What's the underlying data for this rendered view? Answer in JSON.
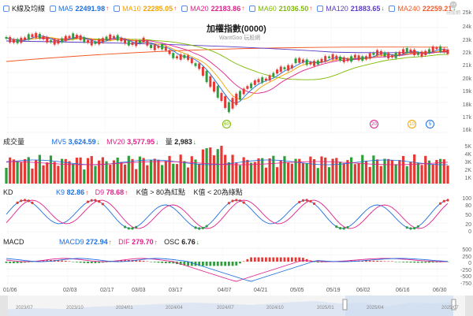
{
  "ma_legend": {
    "k_label": "K線及均線",
    "items": [
      {
        "name": "MA5",
        "value": "22491.98",
        "dir": "↑",
        "color": "#1e6fe0"
      },
      {
        "name": "MA10",
        "value": "22285.05",
        "dir": "↑",
        "color": "#f4a300"
      },
      {
        "name": "MA20",
        "value": "22183.86",
        "dir": "↑",
        "color": "#e0218a"
      },
      {
        "name": "MA60",
        "value": "21036.50",
        "dir": "↑",
        "color": "#7fba00"
      },
      {
        "name": "MA120",
        "value": "21883.65",
        "dir": "↓",
        "color": "#5b3cc4"
      },
      {
        "name": "MA240",
        "value": "22259.21",
        "dir": "↓",
        "color": "#f05a28"
      }
    ]
  },
  "logo": {
    "text": "玩股網"
  },
  "main": {
    "title": "加權指數(0000)",
    "subtitle": "WantGoo 玩股網",
    "y_ticks": [
      "23k",
      "22k",
      "21k",
      "20k",
      "19k",
      "18k",
      "17k",
      "16k",
      "25k",
      "24k"
    ],
    "badges": [
      {
        "text": "60",
        "color": "#7fba00"
      },
      {
        "text": "20",
        "color": "#e0218a"
      },
      {
        "text": "10",
        "color": "#f4a300"
      },
      {
        "text": "5",
        "color": "#1e6fe0"
      }
    ]
  },
  "volume": {
    "label": "成交量",
    "mv5": {
      "name": "MV5",
      "value": "3,624.59",
      "dir": "↓",
      "color": "#1e6fe0"
    },
    "mv20": {
      "name": "MV20",
      "value": "3,577.95",
      "dir": "↓",
      "color": "#e0218a"
    },
    "qty": {
      "name": "量",
      "value": "2,983",
      "dir": "↓"
    },
    "y_ticks": [
      "5K",
      "4K",
      "3K",
      "2K",
      "1K"
    ]
  },
  "kd": {
    "label": "KD",
    "k9": {
      "name": "K9",
      "value": "82.86",
      "dir": "↑",
      "color": "#1e6fe0"
    },
    "d9": {
      "name": "D9",
      "value": "78.68",
      "dir": "↑",
      "color": "#e0218a"
    },
    "note1": "K值 > 80為紅點",
    "note2": "K值 < 20為綠點",
    "y_ticks": [
      "100",
      "80",
      "50",
      "20",
      "0"
    ]
  },
  "macd": {
    "label": "MACD",
    "macd9": {
      "name": "MACD9",
      "value": "272.94",
      "dir": "↑",
      "color": "#1e6fe0"
    },
    "dif": {
      "name": "DIF",
      "value": "279.70",
      "dir": "↑",
      "color": "#e0218a"
    },
    "osc": {
      "name": "OSC",
      "value": "6.76",
      "dir": "↓"
    },
    "y_ticks": [
      "500",
      "250",
      "0",
      "-250",
      "-500",
      "-750"
    ]
  },
  "x_axis": [
    "01/06",
    "02/03",
    "02/17",
    "03/03",
    "03/17",
    "04/07",
    "04/21",
    "05/05",
    "05/19",
    "06/02",
    "06/16",
    "06/30"
  ],
  "timeline": [
    "2023/07",
    "2023/10",
    "2024/01",
    "2024/04",
    "2024/07",
    "2024/10",
    "2025/01",
    "2025/04",
    "2025/07"
  ]
}
